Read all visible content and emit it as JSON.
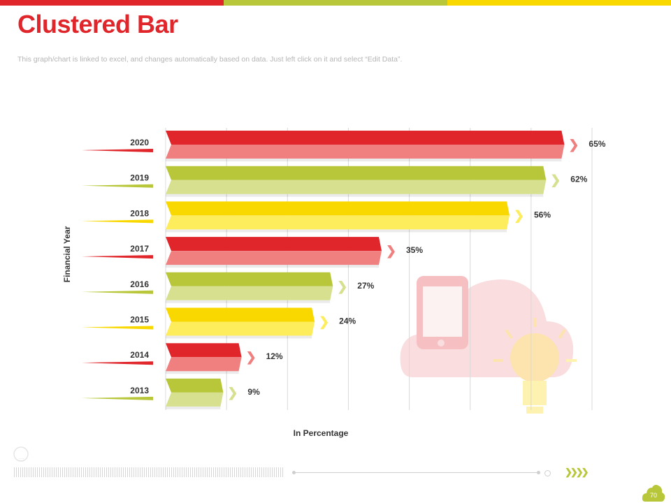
{
  "header": {
    "title": "Clustered Bar",
    "subtitle": "This graph/chart is linked to excel,  and changes automatically based on data. Just left click on it and select “Edit Data”.",
    "bar_colors": [
      "#e0262b",
      "#b8c73a",
      "#f9d800"
    ]
  },
  "footer": {
    "page_number": "70"
  },
  "chart_data": {
    "type": "bar",
    "orientation": "horizontal",
    "title": "Clustered Bar",
    "xlabel": "In Percentage",
    "ylabel": "Financial Year",
    "categories": [
      "2020",
      "2019",
      "2018",
      "2017",
      "2016",
      "2015",
      "2014",
      "2013"
    ],
    "values": [
      65,
      62,
      56,
      35,
      27,
      24,
      12,
      9
    ],
    "labels": [
      "65%",
      "62%",
      "56%",
      "35%",
      "27%",
      "24%",
      "12%",
      "9%"
    ],
    "xlim": [
      0,
      70
    ],
    "grid": true,
    "colors": [
      {
        "dark": "#e0262b",
        "light": "#f08080"
      },
      {
        "dark": "#b8c73a",
        "light": "#d6e08f"
      },
      {
        "dark": "#f9d800",
        "light": "#fdec5c"
      }
    ]
  }
}
